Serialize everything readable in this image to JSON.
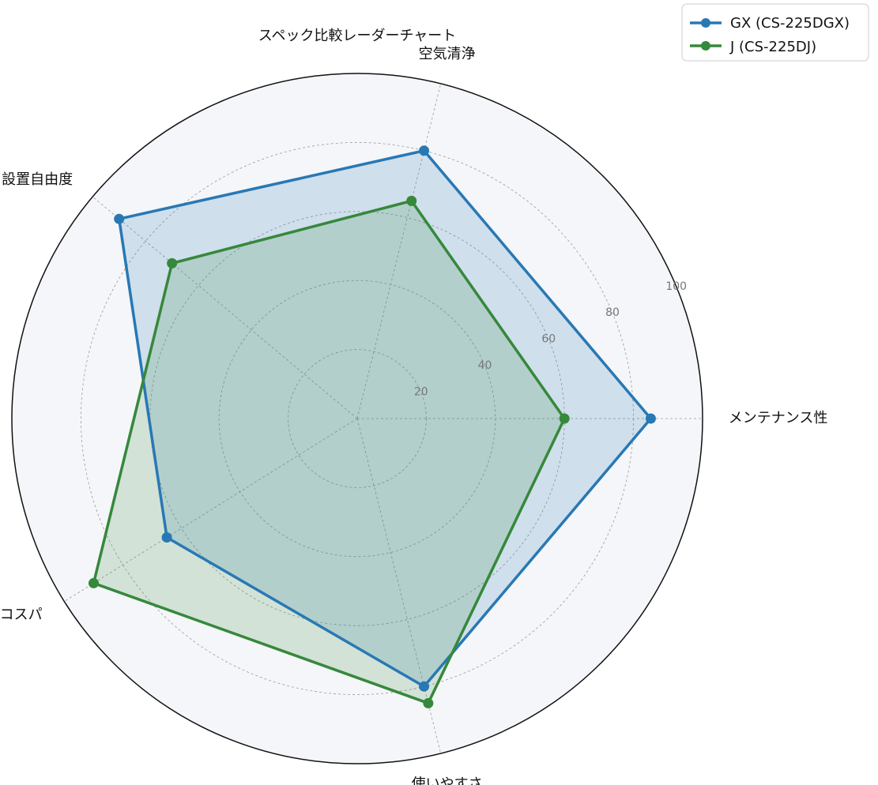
{
  "chart_data": {
    "type": "radar",
    "title": "スペック比較レーダーチャート",
    "axes": [
      "メンテナンス性",
      "空気清浄",
      "設置自由度",
      "コスパ",
      "使いやすさ"
    ],
    "angles_deg": [
      0,
      76,
      140,
      212,
      284
    ],
    "radial_ticks": [
      "20",
      "40",
      "60",
      "80",
      "100"
    ],
    "radial_max": 100,
    "grid": true,
    "legend": "top-right",
    "series": [
      {
        "name": "GX (CS-225DGX)",
        "values": [
          85,
          80,
          90,
          65,
          80
        ],
        "color": "#2878b4",
        "fill": "#2878b4"
      },
      {
        "name": "J (CS-225DJ)",
        "values": [
          60,
          65,
          70,
          90,
          85
        ],
        "color": "#36883b",
        "fill": "#36883b"
      }
    ]
  }
}
